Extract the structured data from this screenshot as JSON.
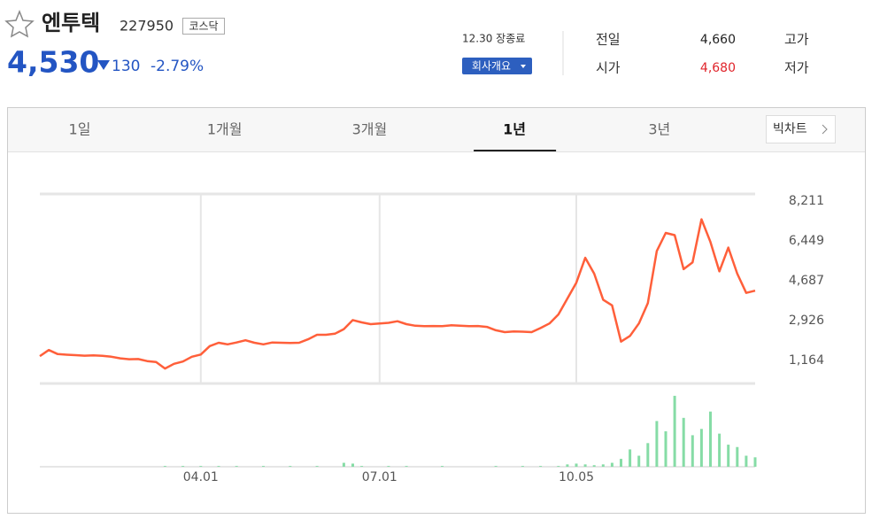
{
  "header": {
    "name": "엔투텍",
    "code": "227950",
    "market": "코스닥",
    "price": "4,530",
    "change": "130",
    "change_pct": "-2.79%",
    "status": "12.30 장종료",
    "company_button": "회사개요"
  },
  "quote": {
    "rows": [
      [
        "전일",
        "4,660",
        "고가"
      ],
      [
        "시가",
        "4,680",
        "저가"
      ]
    ]
  },
  "tabs": {
    "items": [
      "1일",
      "1개월",
      "3개월",
      "1년",
      "3년"
    ],
    "active": 3,
    "big_chart": "빅차트"
  },
  "chart_data": [
    {
      "type": "line",
      "categories": [
        null,
        null,
        null,
        null,
        null,
        null,
        null,
        null,
        null,
        null,
        null,
        null,
        null,
        null,
        null,
        null,
        null,
        null,
        "04.01",
        null,
        null,
        null,
        null,
        null,
        null,
        null,
        null,
        null,
        null,
        null,
        null,
        null,
        null,
        null,
        null,
        null,
        null,
        null,
        "07.01",
        null,
        null,
        null,
        null,
        null,
        null,
        null,
        null,
        null,
        null,
        null,
        null,
        null,
        null,
        null,
        null,
        null,
        null,
        null,
        null,
        null,
        "10.05",
        null,
        null,
        null,
        null,
        null,
        null,
        null,
        null,
        null,
        null,
        null,
        null,
        null,
        null,
        null,
        null,
        null,
        null,
        null,
        null
      ],
      "series": [
        {
          "color": "#ff5f3a",
          "values": [
            1360,
            1630,
            1450,
            1420,
            1400,
            1380,
            1390,
            1370,
            1330,
            1260,
            1220,
            1230,
            1140,
            1100,
            810,
            1020,
            1120,
            1330,
            1430,
            1800,
            1950,
            1880,
            1960,
            2060,
            1950,
            1880,
            1960,
            1950,
            1940,
            1950,
            2100,
            2300,
            2300,
            2350,
            2550,
            2950,
            2850,
            2770,
            2800,
            2830,
            2900,
            2770,
            2700,
            2680,
            2690,
            2680,
            2720,
            2700,
            2680,
            2690,
            2650,
            2500,
            2420,
            2450,
            2440,
            2420,
            2600,
            2800,
            3200,
            3900,
            4600,
            5700,
            5000,
            3850,
            3600,
            2000,
            2250,
            2800,
            3700,
            6000,
            6800,
            6700,
            5200,
            5500,
            7400,
            6400,
            5100,
            6150,
            5000,
            4150,
            4250
          ]
        }
      ],
      "ylim": [
        150,
        8520
      ],
      "yticks": [
        {
          "value": 1164,
          "label": "1,164"
        },
        {
          "value": 2926,
          "label": "2,926"
        },
        {
          "value": 4687,
          "label": "4,687"
        },
        {
          "value": 6449,
          "label": "6,449"
        },
        {
          "value": 8211,
          "label": "8,211"
        }
      ],
      "xgrid": true
    },
    {
      "type": "bar",
      "color": "#86dca6",
      "ylim": [
        0,
        100
      ],
      "values": [
        0,
        0,
        0,
        0,
        0,
        0,
        0,
        0,
        0,
        0,
        0,
        0,
        0,
        0,
        1,
        0,
        1,
        0,
        1,
        0,
        1,
        0,
        1,
        0,
        0,
        1,
        0,
        0,
        1,
        0,
        0,
        1,
        0,
        0,
        5,
        4,
        1,
        0,
        0,
        1,
        0,
        1,
        0,
        0,
        0,
        1,
        0,
        0,
        0,
        0,
        0,
        1,
        0,
        0,
        1,
        0,
        1,
        0,
        1,
        3,
        4,
        3,
        2,
        3,
        5,
        10,
        22,
        14,
        30,
        58,
        45,
        90,
        62,
        40,
        48,
        70,
        42,
        28,
        25,
        14,
        12
      ]
    }
  ]
}
